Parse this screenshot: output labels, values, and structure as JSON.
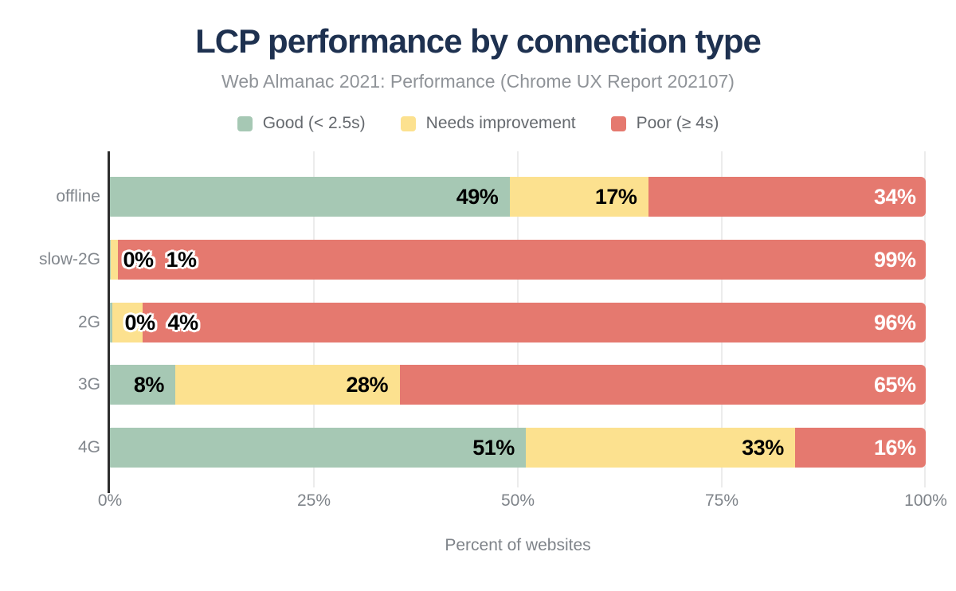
{
  "header": {
    "title": "LCP performance by connection type",
    "subtitle": "Web Almanac 2021: Performance (Chrome UX Report 202107)"
  },
  "legend": {
    "items": [
      {
        "label": "Good (< 2.5s)",
        "color": "#a6c8b4"
      },
      {
        "label": "Needs improvement",
        "color": "#fce18f"
      },
      {
        "label": "Poor (≥ 4s)",
        "color": "#e5796f"
      }
    ]
  },
  "axis": {
    "x_ticks": [
      "0%",
      "25%",
      "50%",
      "75%",
      "100%"
    ],
    "x_label": "Percent of websites"
  },
  "colors": {
    "title": "#1e3150",
    "subtitle": "#8f9398",
    "axis_text": "#7f848a",
    "legend_text": "#65696e",
    "gridline": "#ececec",
    "axis_line": "#2d2d2d",
    "good": "#a6c8b4",
    "needs_improvement": "#fce18f",
    "poor": "#e5796f",
    "label_dark": "#000000",
    "label_light": "#ffffff"
  },
  "chart_data": {
    "type": "bar",
    "stacked": true,
    "orientation": "horizontal",
    "title": "LCP performance by connection type",
    "subtitle": "Web Almanac 2021: Performance (Chrome UX Report 202107)",
    "xlabel": "Percent of websites",
    "ylabel": "",
    "xlim": [
      0,
      100
    ],
    "x_tick_labels": [
      "0%",
      "25%",
      "50%",
      "75%",
      "100%"
    ],
    "grid": "vertical-light",
    "legend_position": "top",
    "categories": [
      "offline",
      "slow-2G",
      "2G",
      "3G",
      "4G"
    ],
    "series": [
      {
        "name": "Good (< 2.5s)",
        "color": "#a6c8b4",
        "values": [
          49,
          0,
          0,
          8,
          51
        ]
      },
      {
        "name": "Needs improvement",
        "color": "#fce18f",
        "values": [
          17,
          1,
          4,
          28,
          33
        ]
      },
      {
        "name": "Poor (≥ 4s)",
        "color": "#e5796f",
        "values": [
          34,
          99,
          96,
          65,
          16
        ]
      }
    ],
    "bar_labels": [
      [
        "49%",
        "17%",
        "34%"
      ],
      [
        "0%",
        "1%",
        "99%"
      ],
      [
        "0%",
        "4%",
        "96%"
      ],
      [
        "8%",
        "28%",
        "65%"
      ],
      [
        "51%",
        "33%",
        "16%"
      ]
    ],
    "render_values": [
      [
        49,
        17,
        34
      ],
      [
        0.05,
        0.95,
        99
      ],
      [
        0.25,
        3.75,
        96
      ],
      [
        8,
        27.5,
        64.5
      ],
      [
        51,
        33,
        16
      ]
    ]
  }
}
